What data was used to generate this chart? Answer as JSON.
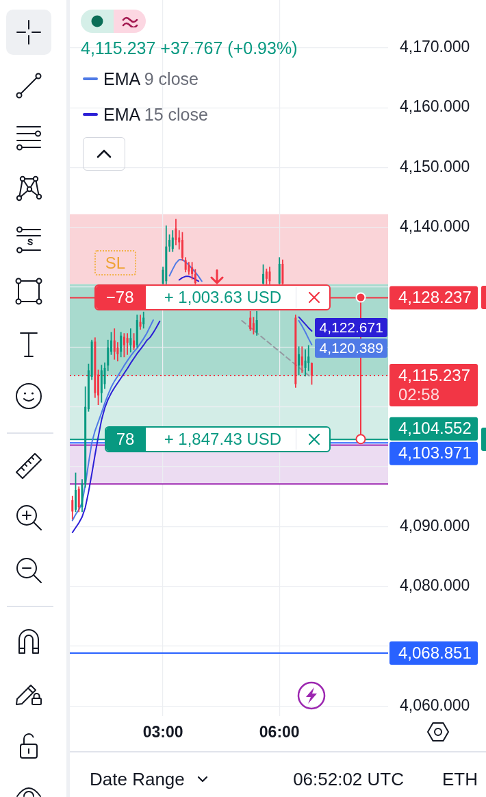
{
  "chart_data": {
    "type": "candlestick",
    "title": "4,115.237 +37.767 (+0.93%)",
    "x": [
      0.667,
      0.75,
      0.833,
      0.917,
      1,
      1.083,
      1.167,
      1.25,
      1.333,
      1.417,
      1.5,
      1.583,
      1.667,
      1.75,
      1.833,
      1.917,
      2,
      2.083,
      2.167,
      2.25,
      2.333,
      2.417,
      2.5,
      2.583,
      2.667,
      2.75,
      2.833,
      2.917,
      3,
      3.083,
      3.167,
      3.25,
      3.333,
      3.417,
      3.5,
      3.583,
      3.667,
      3.75,
      3.833,
      3.917,
      4,
      4.083,
      4.167,
      4.25,
      4.333,
      4.417,
      4.5,
      4.583,
      4.667,
      4.75,
      4.833,
      4.917,
      5,
      5.083,
      5.167,
      5.25,
      5.333,
      5.417,
      5.5,
      5.583,
      5.667,
      5.75,
      5.833,
      5.917,
      6,
      6.083,
      6.167,
      6.25,
      6.333,
      6.417,
      6.5,
      6.583,
      6.667,
      6.75,
      6.833
    ],
    "ohlc": [
      [
        4094.4,
        4095.0,
        4091.3,
        4092.5
      ],
      [
        4092.8,
        4098.9,
        4092.5,
        4096.1
      ],
      [
        4096.3,
        4096.6,
        4092.5,
        4093.2
      ],
      [
        4093.2,
        4097.8,
        4092.5,
        4097.2
      ],
      [
        4097.0,
        4113.3,
        4096.6,
        4110.0
      ],
      [
        4109.6,
        4117.1,
        4109.3,
        4116.1
      ],
      [
        4115.0,
        4121.1,
        4114.6,
        4120.9
      ],
      [
        4120.9,
        4121.5,
        4111.6,
        4112.3
      ],
      [
        4115.4,
        4116.1,
        4110.4,
        4111.9
      ],
      [
        4112.3,
        4116.9,
        4110.8,
        4116.1
      ],
      [
        4113.8,
        4117.3,
        4113.1,
        4116.5
      ],
      [
        4116.9,
        4121.1,
        4116.1,
        4119.9
      ],
      [
        4119.2,
        4122.4,
        4118.8,
        4121.1
      ],
      [
        4121.1,
        4123.0,
        4118.0,
        4119.2
      ],
      [
        4119.9,
        4120.7,
        4117.7,
        4118.8
      ],
      [
        4119.2,
        4122.4,
        4118.4,
        4121.9
      ],
      [
        4121.7,
        4122.2,
        4118.4,
        4120.3
      ],
      [
        4121.5,
        4122.2,
        4118.8,
        4120.7
      ],
      [
        4120.3,
        4123.0,
        4119.2,
        4121.5
      ],
      [
        4121.1,
        4122.2,
        4119.6,
        4119.9
      ],
      [
        4120.3,
        4125.3,
        4120.0,
        4124.5
      ],
      [
        4124.2,
        4125.3,
        4123.0,
        4123.4
      ],
      [
        4123.8,
        4125.8,
        4123.2,
        4124.9
      ],
      null,
      null,
      null,
      null,
      null,
      [
        4130.6,
        4133.3,
        4130.6,
        4132.9
      ],
      [
        4131.0,
        4140.2,
        4130.6,
        4136.8
      ],
      [
        4136.8,
        4138.7,
        4136.0,
        4137.9
      ],
      [
        4136.4,
        4139.4,
        4136.0,
        4138.3
      ],
      [
        4139.8,
        4141.3,
        4137.1,
        4137.9
      ],
      [
        4138.3,
        4139.4,
        4136.4,
        4137.5
      ],
      [
        4137.9,
        4139.1,
        4134.5,
        4134.9
      ],
      [
        4134.5,
        4134.9,
        4132.6,
        4132.9
      ],
      [
        4133.7,
        4134.1,
        4132.2,
        4132.6
      ],
      [
        4133.3,
        4134.1,
        4131.4,
        4132.2
      ],
      [
        4132.2,
        4132.9,
        4130.6,
        4130.7
      ],
      null,
      null,
      null,
      null,
      null,
      null,
      null,
      null,
      null,
      null,
      null,
      null,
      null,
      null,
      null,
      null,
      [
        4124.9,
        4125.9,
        4122.8,
        4123.0
      ],
      [
        4124.0,
        4124.9,
        4122.2,
        4122.8
      ],
      [
        4122.4,
        4125.9,
        4122.0,
        4124.5
      ],
      null,
      [
        4130.6,
        4133.7,
        4130.6,
        4132.2
      ],
      [
        4132.6,
        4133.0,
        4130.6,
        4131.4
      ],
      [
        4132.6,
        4133.3,
        4130.6,
        4131.0
      ],
      null,
      null,
      [
        4130.6,
        4134.9,
        4130.6,
        4133.9
      ],
      [
        4133.9,
        4134.5,
        4130.6,
        4130.6
      ],
      null,
      null,
      null,
      [
        4124.9,
        4125.3,
        4113.3,
        4113.8
      ],
      [
        4116.9,
        4120.0,
        4115.4,
        4118.8
      ],
      [
        4118.4,
        4120.0,
        4115.8,
        4116.9
      ],
      [
        4116.5,
        4119.5,
        4115.2,
        4117.7
      ],
      [
        4117.3,
        4120.2,
        4116.1,
        4118.4
      ],
      [
        4117.3,
        4117.3,
        4113.8,
        4115.237
      ]
    ],
    "series": [
      {
        "name": "EMA 9 close",
        "type": "line",
        "color": "#4f7ae6",
        "values": [
          4091.0,
          4092.0,
          4092.8,
          4094.0,
          4097.0,
          4100.6,
          4104.0,
          4106.0,
          4107.5,
          4109.0,
          4110.6,
          4112.0,
          4113.3,
          4114.3,
          4115.1,
          4116.0,
          4116.9,
          4117.7,
          4118.5,
          4119.2,
          4119.8,
          4120.6,
          4121.4,
          4122.3,
          4123.4,
          4124.5,
          null,
          null,
          null,
          null,
          4131.9,
          4133.0,
          4134.0,
          4134.6,
          4134.6,
          4134.2,
          4133.7,
          4133.1,
          4132.5,
          4131.8,
          4131.0,
          null,
          null,
          null,
          null,
          null,
          null,
          null,
          null,
          null,
          null,
          null,
          null,
          null,
          null,
          null,
          null,
          null,
          null,
          null,
          null,
          null,
          null,
          null,
          null,
          null,
          null,
          null,
          null,
          null,
          4124.4,
          4123.5,
          4122.5,
          4121.4,
          4120.389
        ],
        "value_labels": [
          null,
          null,
          null,
          null,
          null,
          null,
          null,
          null,
          null,
          null,
          null,
          null,
          null,
          null,
          null,
          null,
          null,
          null,
          null,
          null,
          null,
          null,
          null,
          null,
          null,
          null,
          null,
          null,
          null,
          null,
          null,
          null,
          null,
          null,
          null,
          null,
          null,
          null,
          null,
          null,
          null,
          null,
          null,
          null,
          null,
          null,
          null,
          null,
          null,
          null,
          null,
          null,
          null,
          null,
          null,
          null,
          null,
          null,
          null,
          null,
          null,
          null,
          null,
          null,
          null,
          null,
          null,
          null,
          null,
          null,
          null,
          null,
          null,
          null,
          "4,120.389"
        ]
      },
      {
        "name": "EMA 15 close",
        "type": "line",
        "color": "#2b1fd6",
        "values": [
          4089.0,
          4089.8,
          4090.6,
          4091.6,
          4093.2,
          4095.8,
          4098.8,
          4102.0,
          4105.0,
          4107.8,
          4109.8,
          4111.2,
          4112.3,
          4113.2,
          4114.0,
          4114.8,
          4115.6,
          4116.4,
          4117.3,
          4118.1,
          4118.9,
          4119.6,
          4120.3,
          4121.1,
          4121.6,
          4122.4,
          4123.3,
          4124.3,
          null,
          null,
          null,
          null,
          null,
          4131.2,
          4131.6,
          4131.8,
          4131.8,
          4131.6,
          4131.3,
          4131.0,
          null,
          null,
          null,
          null,
          null,
          null,
          null,
          null,
          null,
          null,
          null,
          null,
          null,
          null,
          null,
          null,
          null,
          null,
          null,
          null,
          null,
          null,
          null,
          null,
          null,
          null,
          null,
          null,
          null,
          null,
          4125.0,
          4124.4,
          4123.8,
          4123.2,
          4122.671
        ],
        "value_labels": [
          null,
          null,
          null,
          null,
          null,
          null,
          null,
          null,
          null,
          null,
          null,
          null,
          null,
          null,
          null,
          null,
          null,
          null,
          null,
          null,
          null,
          null,
          null,
          null,
          null,
          null,
          null,
          null,
          null,
          null,
          null,
          null,
          null,
          null,
          null,
          null,
          null,
          null,
          null,
          null,
          null,
          null,
          null,
          null,
          null,
          null,
          null,
          null,
          null,
          null,
          null,
          null,
          null,
          null,
          null,
          null,
          null,
          null,
          null,
          null,
          null,
          null,
          null,
          null,
          null,
          null,
          null,
          null,
          null,
          null,
          null,
          null,
          null,
          null,
          "4,122.671"
        ]
      },
      {
        "type": "line",
        "color": "#9598a1",
        "line_style": "dashed",
        "x": [
          5.033,
          6.8
        ],
        "values": [
          4124.4,
          4115.0
        ]
      }
    ],
    "xlim": [
      0.6,
      8.8
    ],
    "xticks": [
      {
        "value": 3,
        "label": "03:00"
      },
      {
        "value": 6,
        "label": "06:00"
      }
    ],
    "ylim": [
      4058.3,
      4178
    ],
    "yticks": [
      {
        "value": 4060,
        "label": "4,060.000"
      },
      {
        "value": 4070,
        "label": null
      },
      {
        "value": 4080,
        "label": "4,080.000"
      },
      {
        "value": 4090,
        "label": "4,090.000"
      },
      {
        "value": 4100,
        "label": null
      },
      {
        "value": 4110,
        "label": null
      },
      {
        "value": 4120,
        "label": null
      },
      {
        "value": 4130,
        "label": null
      },
      {
        "value": 4140,
        "label": "4,140.000"
      },
      {
        "value": 4150,
        "label": "4,150.000"
      },
      {
        "value": 4160,
        "label": "4,160.000"
      },
      {
        "value": 4170,
        "label": "4,170.000"
      }
    ],
    "grid": true,
    "legend": "top left",
    "ref_lines": [
      {
        "axis": "y",
        "value": 4128.237,
        "label": "4,128.237",
        "color": "#f23645"
      },
      {
        "axis": "y",
        "value": 4115.237,
        "label": "4,115.237",
        "color": "#f23645",
        "line_style": "dotted"
      },
      {
        "axis": "y",
        "value": 4104.552,
        "label": "4,104.552",
        "color": "#089981"
      },
      {
        "axis": "y",
        "value": 4103.971,
        "label": "4,103.971",
        "color": "#2962ff"
      },
      {
        "axis": "y",
        "value": 4103.6,
        "color": "#9c27b0"
      },
      {
        "axis": "y",
        "value": 4097.1,
        "color": "#9c27b0"
      },
      {
        "axis": "y",
        "value": 4068.851,
        "label": "4,068.851",
        "color": "#2962ff"
      }
    ],
    "bands": [
      {
        "axis": "y",
        "from": 4130.5,
        "to": 4142.2,
        "color": "#fad4d8"
      },
      {
        "axis": "y",
        "from": 4104.552,
        "to": 4130.5,
        "color": "#d3ede7"
      },
      {
        "axis": "y",
        "from": 4115.237,
        "to": 4130.5,
        "color": "#a8dace"
      },
      {
        "axis": "y",
        "from": 4097.1,
        "to": 4103.6,
        "color": "#ecdcf2"
      }
    ],
    "annotations": [
      "SL",
      {
        "text": "−78",
        "x": 1.89,
        "y": 4128.237
      },
      {
        "text": "+ 1,003.63 USD",
        "x": 4.54,
        "y": 4128.237
      },
      {
        "text": "78",
        "x": 2.03,
        "y": 4104.552
      },
      {
        "text": "+ 1,847.43 USD",
        "x": 4.54,
        "y": 4104.552
      },
      "02:58",
      "Date Range",
      "06:52:02 UTC",
      "ETH"
    ]
  }
}
